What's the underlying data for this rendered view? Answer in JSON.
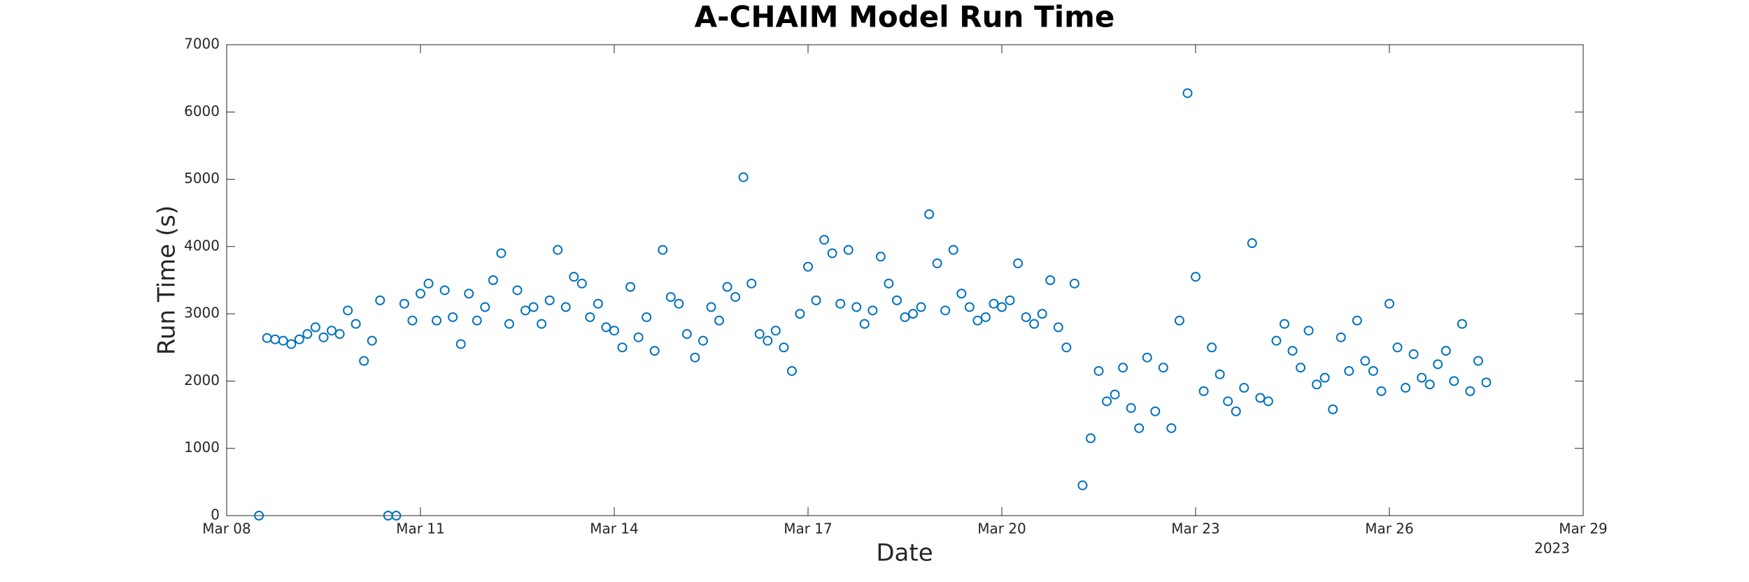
{
  "chart_data": {
    "type": "scatter",
    "title": "A-CHAIM Model Run Time",
    "x_label": "Date",
    "y_label": "Run Time (s)",
    "x_year": "2023",
    "color": "#0072bd",
    "xlim": [
      "2023-03-08",
      "2023-03-29"
    ],
    "xticks": [
      {
        "value": "2023-03-08",
        "label": "Mar 08"
      },
      {
        "value": "2023-03-11",
        "label": "Mar 11"
      },
      {
        "value": "2023-03-14",
        "label": "Mar 14"
      },
      {
        "value": "2023-03-17",
        "label": "Mar 17"
      },
      {
        "value": "2023-03-20",
        "label": "Mar 20"
      },
      {
        "value": "2023-03-23",
        "label": "Mar 23"
      },
      {
        "value": "2023-03-26",
        "label": "Mar 26"
      },
      {
        "value": "2023-03-29",
        "label": "Mar 29"
      }
    ],
    "ylim": [
      0,
      7000
    ],
    "yticks": [
      0,
      1000,
      2000,
      3000,
      4000,
      5000,
      6000,
      7000
    ],
    "x": [
      "2023-03-08T12:00",
      "2023-03-08T15:00",
      "2023-03-08T18:00",
      "2023-03-08T21:00",
      "2023-03-09T00:00",
      "2023-03-09T03:00",
      "2023-03-09T06:00",
      "2023-03-09T09:00",
      "2023-03-09T12:00",
      "2023-03-09T15:00",
      "2023-03-09T18:00",
      "2023-03-09T21:00",
      "2023-03-10T00:00",
      "2023-03-10T03:00",
      "2023-03-10T06:00",
      "2023-03-10T09:00",
      "2023-03-10T12:00",
      "2023-03-10T15:00",
      "2023-03-10T18:00",
      "2023-03-10T21:00",
      "2023-03-11T00:00",
      "2023-03-11T03:00",
      "2023-03-11T06:00",
      "2023-03-11T09:00",
      "2023-03-11T12:00",
      "2023-03-11T15:00",
      "2023-03-11T18:00",
      "2023-03-11T21:00",
      "2023-03-12T00:00",
      "2023-03-12T03:00",
      "2023-03-12T06:00",
      "2023-03-12T09:00",
      "2023-03-12T12:00",
      "2023-03-12T15:00",
      "2023-03-12T18:00",
      "2023-03-12T21:00",
      "2023-03-13T00:00",
      "2023-03-13T03:00",
      "2023-03-13T06:00",
      "2023-03-13T09:00",
      "2023-03-13T12:00",
      "2023-03-13T15:00",
      "2023-03-13T18:00",
      "2023-03-13T21:00",
      "2023-03-14T00:00",
      "2023-03-14T03:00",
      "2023-03-14T06:00",
      "2023-03-14T09:00",
      "2023-03-14T12:00",
      "2023-03-14T15:00",
      "2023-03-14T18:00",
      "2023-03-14T21:00",
      "2023-03-15T00:00",
      "2023-03-15T03:00",
      "2023-03-15T06:00",
      "2023-03-15T09:00",
      "2023-03-15T12:00",
      "2023-03-15T15:00",
      "2023-03-15T18:00",
      "2023-03-15T21:00",
      "2023-03-16T00:00",
      "2023-03-16T03:00",
      "2023-03-16T06:00",
      "2023-03-16T09:00",
      "2023-03-16T12:00",
      "2023-03-16T15:00",
      "2023-03-16T18:00",
      "2023-03-16T21:00",
      "2023-03-17T00:00",
      "2023-03-17T03:00",
      "2023-03-17T06:00",
      "2023-03-17T09:00",
      "2023-03-17T12:00",
      "2023-03-17T15:00",
      "2023-03-17T18:00",
      "2023-03-17T21:00",
      "2023-03-18T00:00",
      "2023-03-18T03:00",
      "2023-03-18T06:00",
      "2023-03-18T09:00",
      "2023-03-18T12:00",
      "2023-03-18T15:00",
      "2023-03-18T18:00",
      "2023-03-18T21:00",
      "2023-03-19T00:00",
      "2023-03-19T03:00",
      "2023-03-19T06:00",
      "2023-03-19T09:00",
      "2023-03-19T12:00",
      "2023-03-19T15:00",
      "2023-03-19T18:00",
      "2023-03-19T21:00",
      "2023-03-20T00:00",
      "2023-03-20T03:00",
      "2023-03-20T06:00",
      "2023-03-20T09:00",
      "2023-03-20T12:00",
      "2023-03-20T15:00",
      "2023-03-20T18:00",
      "2023-03-20T21:00",
      "2023-03-21T00:00",
      "2023-03-21T03:00",
      "2023-03-21T06:00",
      "2023-03-21T09:00",
      "2023-03-21T12:00",
      "2023-03-21T15:00",
      "2023-03-21T18:00",
      "2023-03-21T21:00",
      "2023-03-22T00:00",
      "2023-03-22T03:00",
      "2023-03-22T06:00",
      "2023-03-22T09:00",
      "2023-03-22T12:00",
      "2023-03-22T15:00",
      "2023-03-22T18:00",
      "2023-03-22T21:00",
      "2023-03-23T00:00",
      "2023-03-23T03:00",
      "2023-03-23T06:00",
      "2023-03-23T09:00",
      "2023-03-23T12:00",
      "2023-03-23T15:00",
      "2023-03-23T18:00",
      "2023-03-23T21:00",
      "2023-03-24T00:00",
      "2023-03-24T03:00",
      "2023-03-24T06:00",
      "2023-03-24T09:00",
      "2023-03-24T12:00",
      "2023-03-24T15:00",
      "2023-03-24T18:00",
      "2023-03-24T21:00",
      "2023-03-25T00:00",
      "2023-03-25T03:00",
      "2023-03-25T06:00",
      "2023-03-25T09:00",
      "2023-03-25T12:00",
      "2023-03-25T15:00",
      "2023-03-25T18:00",
      "2023-03-25T21:00",
      "2023-03-26T00:00",
      "2023-03-26T03:00",
      "2023-03-26T06:00",
      "2023-03-26T09:00",
      "2023-03-26T12:00",
      "2023-03-26T15:00",
      "2023-03-26T18:00",
      "2023-03-26T21:00",
      "2023-03-27T00:00",
      "2023-03-27T03:00",
      "2023-03-27T06:00",
      "2023-03-27T09:00",
      "2023-03-27T12:00"
    ],
    "values": [
      0,
      2640,
      2620,
      2600,
      2550,
      2620,
      2700,
      2800,
      2650,
      2750,
      2700,
      3050,
      2850,
      2300,
      2600,
      3200,
      0,
      0,
      3150,
      2900,
      3300,
      3450,
      2900,
      3350,
      2950,
      2550,
      3300,
      2900,
      3100,
      3500,
      3900,
      2850,
      3350,
      3050,
      3100,
      2850,
      3200,
      3950,
      3100,
      3550,
      3450,
      2950,
      3150,
      2800,
      2750,
      2500,
      3400,
      2650,
      2950,
      2450,
      3950,
      3250,
      3150,
      2700,
      2350,
      2600,
      3100,
      2900,
      3400,
      3250,
      5030,
      3450,
      2700,
      2600,
      2750,
      2500,
      2150,
      3000,
      3700,
      3200,
      4100,
      3900,
      3150,
      3950,
      3100,
      2850,
      3050,
      3850,
      3450,
      3200,
      2950,
      3000,
      3100,
      4480,
      3750,
      3050,
      3950,
      3300,
      3100,
      2900,
      2950,
      3150,
      3100,
      3200,
      3750,
      2950,
      2850,
      3000,
      3500,
      2800,
      2500,
      3450,
      450,
      1150,
      2150,
      1700,
      1800,
      2200,
      1600,
      1300,
      2350,
      1550,
      2200,
      1300,
      2900,
      6280,
      3550,
      1850,
      2500,
      2100,
      1700,
      1550,
      1900,
      4050,
      1750,
      1700,
      2600,
      2850,
      2450,
      2200,
      2750,
      1950,
      2050,
      1580,
      2650,
      2150,
      2900,
      2300,
      2150,
      1850,
      3150,
      2500,
      1900,
      2400,
      2050,
      1950,
      2250,
      2450,
      2000,
      2850,
      1850,
      2300,
      1980
    ]
  }
}
